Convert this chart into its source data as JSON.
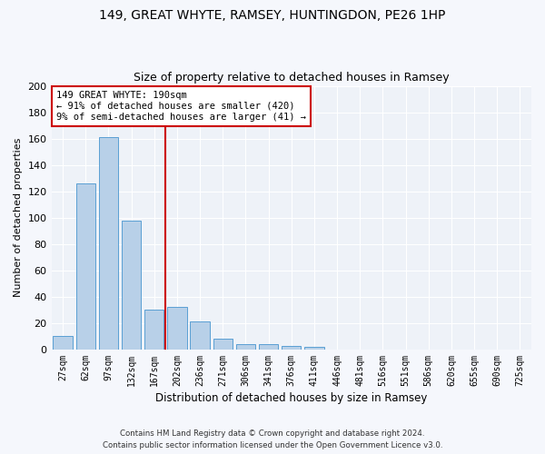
{
  "title1": "149, GREAT WHYTE, RAMSEY, HUNTINGDON, PE26 1HP",
  "title2": "Size of property relative to detached houses in Ramsey",
  "xlabel": "Distribution of detached houses by size in Ramsey",
  "ylabel": "Number of detached properties",
  "categories": [
    "27sqm",
    "62sqm",
    "97sqm",
    "132sqm",
    "167sqm",
    "202sqm",
    "236sqm",
    "271sqm",
    "306sqm",
    "341sqm",
    "376sqm",
    "411sqm",
    "446sqm",
    "481sqm",
    "516sqm",
    "551sqm",
    "586sqm",
    "620sqm",
    "655sqm",
    "690sqm",
    "725sqm"
  ],
  "values": [
    10,
    126,
    161,
    98,
    30,
    32,
    21,
    8,
    4,
    4,
    3,
    2,
    0,
    0,
    0,
    0,
    0,
    0,
    0,
    0,
    0
  ],
  "bar_color": "#b8d0e8",
  "bar_edge_color": "#5a9fd4",
  "vline_color": "#cc0000",
  "vline_x_index": 4.5,
  "annotation_text": "149 GREAT WHYTE: 190sqm\n← 91% of detached houses are smaller (420)\n9% of semi-detached houses are larger (41) →",
  "annotation_box_color": "#ffffff",
  "annotation_box_edge": "#cc0000",
  "ylim": [
    0,
    200
  ],
  "yticks": [
    0,
    20,
    40,
    60,
    80,
    100,
    120,
    140,
    160,
    180,
    200
  ],
  "background_color": "#eef2f8",
  "grid_color": "#ffffff",
  "fig_facecolor": "#f5f7fc",
  "footer1": "Contains HM Land Registry data © Crown copyright and database right 2024.",
  "footer2": "Contains public sector information licensed under the Open Government Licence v3.0."
}
